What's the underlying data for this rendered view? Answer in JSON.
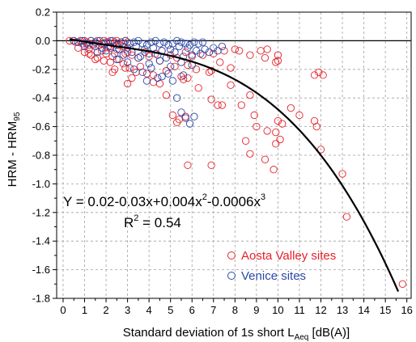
{
  "chart_data": {
    "type": "scatter",
    "xlabel": "Standard deviation of 1s short L",
    "xlabel_sub": "Aeq",
    "xlabel_tail": " [dB(A)]",
    "ylabel": "HRM - HRM",
    "ylabel_sub": "95",
    "xlim": [
      -0.3,
      16.2
    ],
    "ylim": [
      -1.8,
      0.2
    ],
    "x_ticks": [
      0,
      1,
      2,
      3,
      4,
      5,
      6,
      7,
      8,
      9,
      10,
      11,
      12,
      13,
      14,
      15,
      16
    ],
    "y_ticks": [
      0.2,
      0.0,
      -0.2,
      -0.4,
      -0.6,
      -0.8,
      -1.0,
      -1.2,
      -1.4,
      -1.6,
      -1.8
    ],
    "y_tick_labels": [
      "0.2",
      "0.0",
      "-0.2",
      "-0.4",
      "-0.6",
      "-0.8",
      "-1.0",
      "-1.2",
      "-1.4",
      "-1.6",
      "-1.8"
    ],
    "grid": true,
    "legend_position": "bottom-right",
    "equation": {
      "line1": "Y = 0.02-0.03x+0.004x",
      "line1_sup1": "2",
      "line1_mid": "-0.0006x",
      "line1_sup2": "3",
      "r2_label": "R",
      "r2_sup": "2",
      "r2_value": " = 0.54"
    },
    "fit": {
      "coefficients": [
        0.02,
        -0.03,
        0.004,
        -0.0006
      ],
      "x_range": [
        0.3,
        15.6
      ],
      "color": "#000000"
    },
    "series": [
      {
        "name": "Aosta Valley sites",
        "color": "#e8202a",
        "x": [
          0.3,
          0.5,
          0.6,
          0.8,
          0.9,
          1.0,
          1.1,
          1.2,
          1.3,
          1.4,
          1.5,
          1.6,
          1.7,
          1.8,
          1.9,
          2.0,
          2.1,
          2.2,
          2.3,
          2.4,
          2.5,
          2.6,
          2.7,
          2.8,
          2.9,
          3.0,
          0.7,
          1.0,
          1.2,
          1.5,
          1.8,
          2.0,
          2.2,
          2.5,
          2.8,
          3.0,
          1.3,
          1.6,
          1.9,
          2.3,
          2.6,
          2.9,
          3.2,
          3.5,
          3.8,
          4.0,
          4.3,
          4.6,
          5.0,
          5.3,
          5.7,
          6.0,
          6.5,
          7.0,
          7.5,
          8.0,
          1.2,
          1.5,
          2.2,
          2.4,
          2.8,
          3.1,
          3.4,
          3.6,
          4.2,
          4.5,
          4.8,
          5.2,
          5.5,
          5.8,
          6.2,
          6.8,
          7.3,
          7.8,
          3.0,
          4.5,
          5.1,
          5.3,
          5.4,
          5.7,
          5.8,
          6.9,
          7.4,
          2.3,
          2.9,
          3.2,
          3.9,
          4.2,
          4.8,
          5.6,
          6.3,
          6.9,
          7.2,
          7.8,
          8.3,
          8.7,
          8.9,
          9.5,
          9.9,
          10.0,
          10.2,
          10.1,
          10.6,
          11.0,
          11.7,
          11.8,
          11.9,
          12.1,
          8.5,
          8.7,
          9.8,
          9.9,
          9.4,
          8.2,
          9.5,
          10.0,
          9.4,
          9.9,
          10.0,
          5.8,
          6.9,
          9.2,
          11.7,
          12.0,
          13.0,
          13.2,
          15.8,
          8.7,
          9.0
        ],
        "y": [
          0.0,
          0.0,
          -0.01,
          0.0,
          -0.02,
          0.0,
          -0.01,
          -0.03,
          0.0,
          -0.02,
          -0.01,
          0.0,
          -0.03,
          -0.02,
          0.0,
          -0.01,
          -0.04,
          0.0,
          -0.02,
          -0.01,
          0.0,
          -0.03,
          -0.01,
          -0.02,
          0.0,
          -0.01,
          -0.05,
          -0.08,
          -0.06,
          -0.04,
          -0.07,
          -0.09,
          -0.05,
          -0.06,
          -0.04,
          -0.08,
          -0.1,
          -0.12,
          -0.14,
          -0.11,
          -0.13,
          -0.09,
          -0.1,
          -0.12,
          -0.08,
          -0.11,
          -0.09,
          -0.07,
          -0.1,
          -0.12,
          -0.08,
          -0.11,
          -0.1,
          -0.09,
          -0.07,
          -0.06,
          -0.09,
          -0.13,
          -0.15,
          -0.2,
          -0.16,
          -0.19,
          -0.22,
          -0.18,
          -0.24,
          -0.14,
          -0.21,
          -0.18,
          -0.25,
          -0.17,
          -0.2,
          -0.22,
          -0.15,
          -0.19,
          -0.3,
          -0.3,
          -0.52,
          -0.57,
          -0.55,
          -0.53,
          -0.87,
          -0.87,
          -0.45,
          -0.22,
          -0.19,
          -0.26,
          -0.23,
          -0.29,
          -0.38,
          -0.27,
          -0.33,
          -0.41,
          -0.45,
          -0.31,
          -0.45,
          -0.38,
          -0.52,
          -0.63,
          -0.72,
          -0.56,
          -0.58,
          -0.69,
          -0.47,
          -0.52,
          -0.56,
          -0.6,
          -0.22,
          -0.24,
          -0.7,
          -0.79,
          -0.9,
          -0.64,
          -0.83,
          -0.07,
          -0.06,
          -0.1,
          -0.12,
          -0.15,
          -0.14,
          -0.26,
          -0.21,
          -0.07,
          -0.24,
          -0.76,
          -0.93,
          -1.23,
          -1.7,
          -0.1,
          -0.6
        ],
        "marker": "open-circle"
      },
      {
        "name": "Venice sites",
        "color": "#2b48a8",
        "x": [
          0.5,
          0.7,
          0.9,
          1.1,
          1.3,
          1.5,
          1.7,
          1.9,
          2.1,
          2.3,
          2.5,
          2.7,
          2.9,
          3.1,
          3.3,
          3.5,
          3.7,
          3.9,
          4.1,
          4.3,
          4.5,
          4.7,
          4.9,
          5.1,
          5.3,
          5.5,
          5.7,
          5.9,
          6.1,
          6.3,
          6.5,
          1.0,
          1.4,
          1.8,
          2.2,
          2.6,
          3.0,
          3.4,
          3.8,
          4.2,
          4.6,
          5.0,
          5.4,
          5.8,
          6.2,
          6.6,
          7.0,
          7.4,
          1.6,
          2.0,
          2.4,
          2.8,
          3.2,
          3.6,
          4.0,
          4.4,
          4.8,
          5.2,
          5.6,
          6.0,
          6.4,
          6.8,
          7.2,
          2.5,
          3.0,
          3.5,
          4.0,
          4.5,
          5.0,
          5.5,
          6.0,
          3.3,
          3.7,
          4.1,
          4.6,
          4.9,
          5.1,
          5.6,
          3.9,
          4.4,
          5.3,
          5.5,
          5.7,
          5.9,
          6.1
        ],
        "y": [
          0.0,
          -0.01,
          0.0,
          -0.02,
          0.0,
          -0.01,
          0.0,
          -0.02,
          -0.01,
          0.0,
          -0.03,
          -0.01,
          0.0,
          -0.02,
          -0.01,
          0.0,
          -0.02,
          -0.03,
          -0.01,
          0.0,
          -0.02,
          -0.01,
          -0.03,
          -0.02,
          0.0,
          -0.01,
          -0.02,
          -0.03,
          -0.01,
          -0.02,
          -0.01,
          -0.04,
          -0.03,
          -0.05,
          -0.04,
          -0.06,
          -0.05,
          -0.04,
          -0.06,
          -0.05,
          -0.07,
          -0.06,
          -0.04,
          -0.05,
          -0.07,
          -0.06,
          -0.05,
          -0.04,
          -0.08,
          -0.07,
          -0.09,
          -0.1,
          -0.08,
          -0.11,
          -0.09,
          -0.1,
          -0.12,
          -0.08,
          -0.11,
          -0.1,
          -0.09,
          -0.08,
          -0.07,
          -0.13,
          -0.15,
          -0.12,
          -0.16,
          -0.14,
          -0.18,
          -0.15,
          -0.17,
          -0.2,
          -0.22,
          -0.19,
          -0.25,
          -0.23,
          -0.28,
          -0.24,
          -0.28,
          -0.26,
          -0.4,
          -0.5,
          -0.54,
          -0.58,
          -0.53
        ],
        "marker": "open-circle"
      }
    ]
  }
}
